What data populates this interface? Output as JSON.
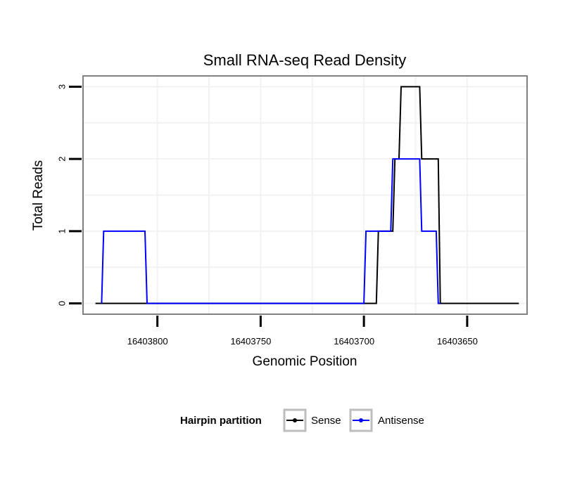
{
  "chart_data": {
    "type": "line",
    "title": "Small RNA-seq Read Density",
    "xlabel": "Genomic Position",
    "ylabel": "Total Reads",
    "xlim": [
      16403836,
      16403621
    ],
    "x_reversed": true,
    "ylim": [
      -0.15,
      3.15
    ],
    "xticks": [
      16403800,
      16403750,
      16403700,
      16403650
    ],
    "xtick_labels": [
      "16403800",
      "16403750",
      "16403700",
      "16403650"
    ],
    "yticks": [
      0,
      1,
      2,
      3
    ],
    "ytick_labels": [
      "0",
      "1",
      "2",
      "3"
    ],
    "grid": true,
    "legend": {
      "title": "Hairpin partition",
      "position": "bottom",
      "entries": [
        "Sense",
        "Antisense"
      ]
    },
    "series": [
      {
        "name": "Sense",
        "color": "#000000",
        "x": [
          16403830,
          16403694,
          16403693,
          16403686,
          16403685,
          16403683,
          16403682,
          16403673,
          16403672,
          16403664,
          16403663,
          16403656,
          16403655,
          16403625
        ],
        "y": [
          0,
          0,
          1,
          1,
          2,
          2,
          3,
          3,
          2,
          2,
          0,
          0,
          0,
          0
        ]
      },
      {
        "name": "Antisense",
        "color": "#0000ff",
        "x": [
          16403827,
          16403826,
          16403806,
          16403805,
          16403700,
          16403699,
          16403694,
          16403687,
          16403686,
          16403673,
          16403672,
          16403665,
          16403664,
          16403663
        ],
        "y": [
          0,
          1,
          1,
          0,
          0,
          1,
          1,
          1,
          2,
          2,
          1,
          1,
          0,
          0
        ]
      }
    ]
  }
}
